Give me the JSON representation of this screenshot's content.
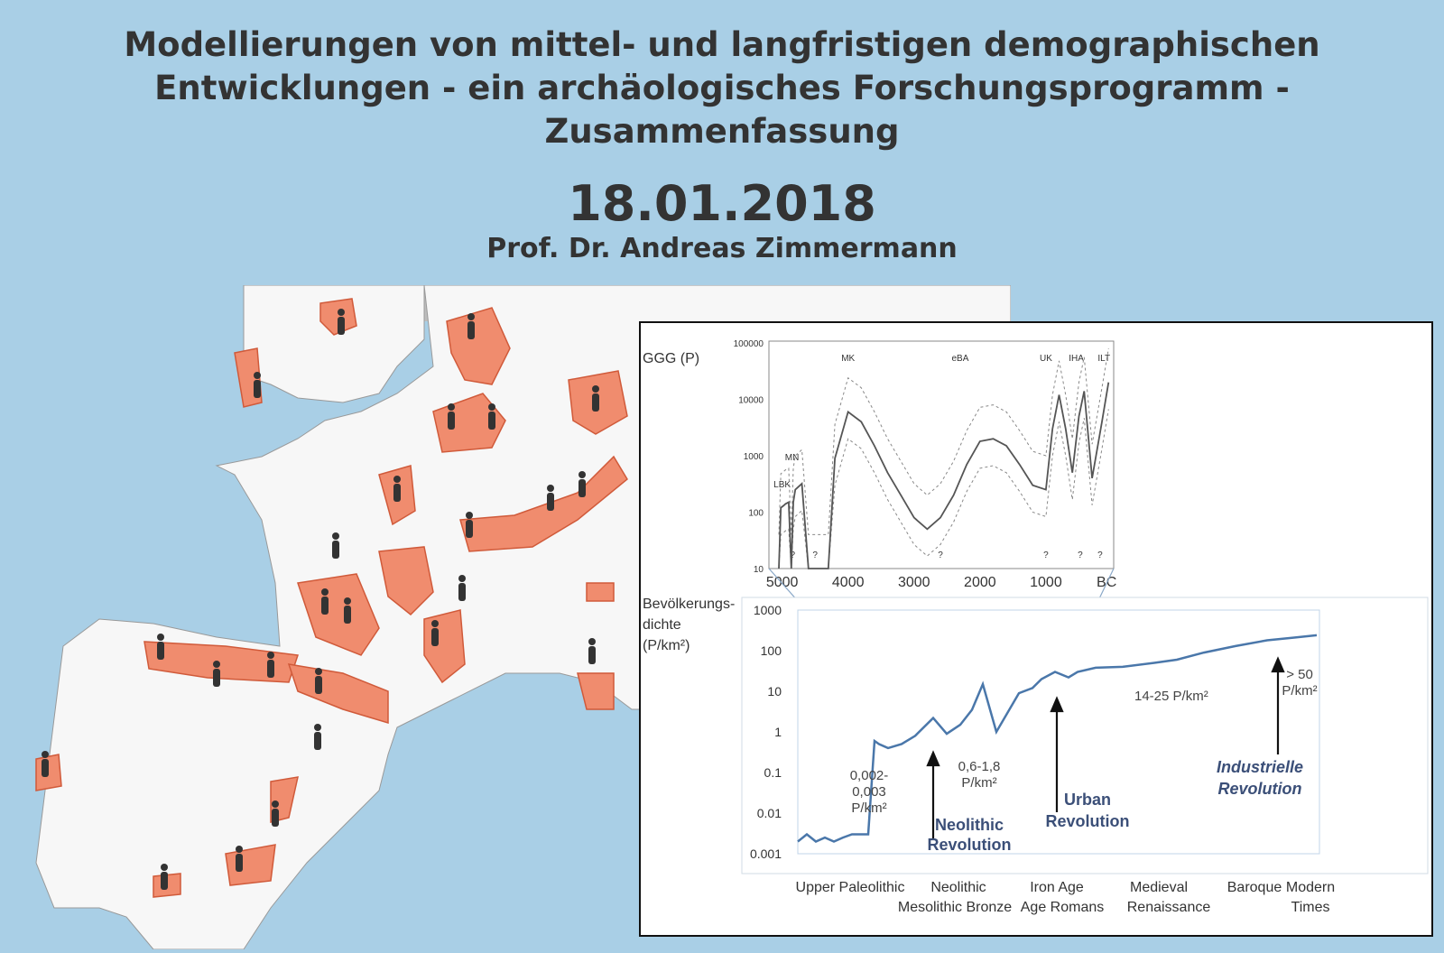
{
  "title_lines": [
    "Modellierungen von mittel- und langfristigen demographischen",
    "Entwicklungen - ein archäologisches Forschungsprogramm -",
    "Zusammenfassung"
  ],
  "date": "18.01.2018",
  "author": "Prof. Dr. Andreas Zimmermann",
  "colors": {
    "background": "#a9cfe6",
    "sea": "#a9cfe6",
    "land": "#f7f7f7",
    "population_area": "#f08c6e",
    "line": "#4a77aa"
  },
  "map": {
    "icon": "person-figure-icon"
  },
  "chart_data": [
    {
      "type": "line",
      "ylabel": "GGG (P)",
      "y_scale": "log",
      "y_ticks": [
        "100000",
        "10000",
        "1000",
        "100",
        "10"
      ],
      "x_ticks": [
        "5000",
        "4000",
        "3000",
        "2000",
        "1000",
        "BC"
      ],
      "period_labels": [
        "LBK",
        "MN",
        "MK",
        "eBA",
        "UK",
        "IHA",
        "ILT"
      ],
      "unknown_marks": [
        "?",
        "?",
        "?",
        "?",
        "?",
        "?"
      ],
      "series": [
        {
          "x": [
            5050,
            5020,
            4980,
            4950,
            4900,
            4860,
            4830,
            4800,
            4700,
            4600,
            4500,
            4400,
            4300,
            4200,
            4000,
            3800,
            3600,
            3400,
            3200,
            3000,
            2800,
            2600,
            2400,
            2200,
            2000,
            1800,
            1600,
            1400,
            1200,
            1000,
            900,
            800,
            700,
            600,
            500,
            420,
            300,
            150,
            50
          ],
          "y": [
            10,
            120,
            130,
            140,
            150,
            10,
            150,
            250,
            320,
            10,
            10,
            10,
            10,
            900,
            6000,
            4000,
            1500,
            500,
            200,
            80,
            50,
            80,
            200,
            700,
            1800,
            2000,
            1500,
            700,
            300,
            250,
            3000,
            12000,
            3000,
            500,
            5000,
            14000,
            400,
            4000,
            20000
          ]
        }
      ]
    },
    {
      "type": "line",
      "ylabel": "Bevölkerungs-\ndichte\n(P/km²)",
      "y_scale": "log",
      "y_ticks": [
        "1000",
        "100",
        "10",
        "1",
        "0.1",
        "0.01",
        "0.001"
      ],
      "x_labels_row1": [
        "Upper Paleolithic",
        "Neolithic",
        "Iron Age",
        "Medieval",
        "Baroque",
        "Modern"
      ],
      "x_labels_row2": [
        "Mesolithic Bronze",
        "Age Romans",
        "Renaissance",
        "Times"
      ],
      "annotations": [
        "0,002-\n0,003\nP/km²",
        "0,6-1,8\nP/km²",
        "14-25 P/km²",
        "> 50\nP/km²"
      ],
      "revolutions": [
        "Neolithic\nRevolution",
        "Urban\nRevolution",
        "Industrielle\nRevolution"
      ],
      "series": [
        {
          "x": [
            0,
            10,
            20,
            30,
            40,
            50,
            60,
            70,
            78,
            85,
            90,
            100,
            115,
            130,
            150,
            165,
            180,
            193,
            205,
            220,
            245,
            260,
            270,
            285,
            300,
            310,
            330,
            360,
            395,
            420,
            450,
            485,
            520,
            550,
            575
          ],
          "y": [
            0.002,
            0.003,
            0.002,
            0.0025,
            0.002,
            0.0025,
            0.003,
            0.003,
            0.003,
            0.6,
            0.5,
            0.4,
            0.5,
            0.8,
            2.2,
            0.9,
            1.5,
            3.5,
            15,
            1,
            9,
            12,
            20,
            30,
            22,
            30,
            38,
            40,
            50,
            60,
            90,
            130,
            180,
            210,
            240
          ]
        }
      ]
    }
  ]
}
